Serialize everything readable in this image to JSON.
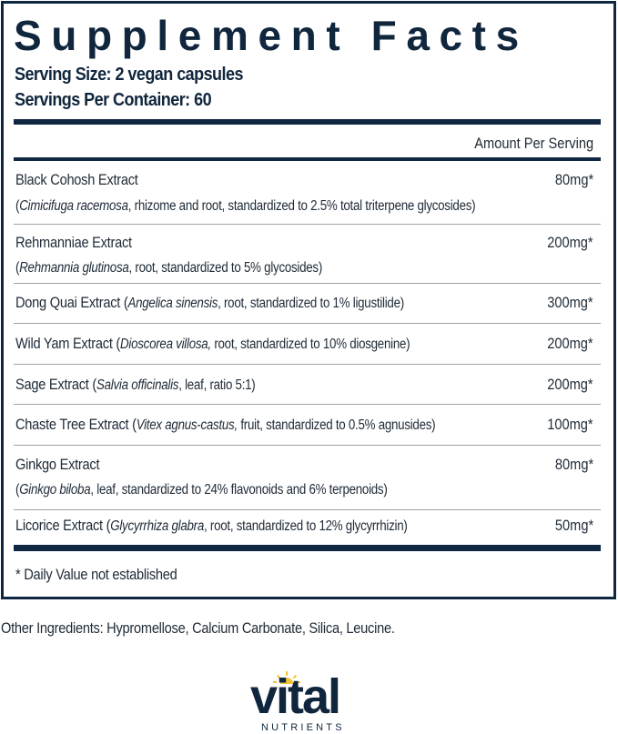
{
  "title": "Supplement Facts",
  "serving_size": "Serving Size: 2 vegan capsules",
  "servings_per_container": "Servings Per Container: 60",
  "amount_header": "Amount Per Serving",
  "rows": [
    {
      "name": "Black Cohosh Extract",
      "latin": "Cimicifuga racemosa",
      "detail": ", rhizome and root, standardized to 2.5% total triterpene glycosides)",
      "amount": "80mg*"
    },
    {
      "name": "Rehmanniae Extract",
      "latin": "Rehmannia glutinosa",
      "detail": ", root, standardized to 5% glycosides)",
      "amount": "200mg*"
    },
    {
      "name": "Dong Quai Extract (",
      "latin": "Angelica sinensis",
      "detail": ", root, standardized to 1% ligustilide)",
      "amount": "300mg*"
    },
    {
      "name": "Wild Yam Extract (",
      "latin": "Dioscorea villosa,",
      "detail": " root, standardized to 10% diosgenine)",
      "amount": "200mg*"
    },
    {
      "name": "Sage Extract (",
      "latin": "Salvia officinalis",
      "detail": ", leaf, ratio 5:1)",
      "amount": "200mg*"
    },
    {
      "name": "Chaste Tree Extract (",
      "latin": "Vitex agnus-castus,",
      "detail": " fruit, standardized to 0.5% agnusides)",
      "amount": "100mg*"
    },
    {
      "name": "Ginkgo Extract",
      "latin": "Ginkgo biloba",
      "detail": ", leaf, standardized to 24% flavonoids and 6% terpenoids)",
      "amount": "80mg*"
    },
    {
      "name": "Licorice Extract (",
      "latin": "Glycyrrhiza glabra",
      "detail": ", root, standardized to 12% glycyrrhizin)",
      "amount": "50mg*"
    }
  ],
  "footnote": "* Daily Value not established",
  "other_ingredients": "Other Ingredients: Hypromellose,  Calcium Carbonate, Silica, Leucine.",
  "logo": {
    "word": "vital",
    "tagline": "NUTRIENTS"
  },
  "colors": {
    "navy": "#0f2740",
    "sun": "#f2c230"
  }
}
